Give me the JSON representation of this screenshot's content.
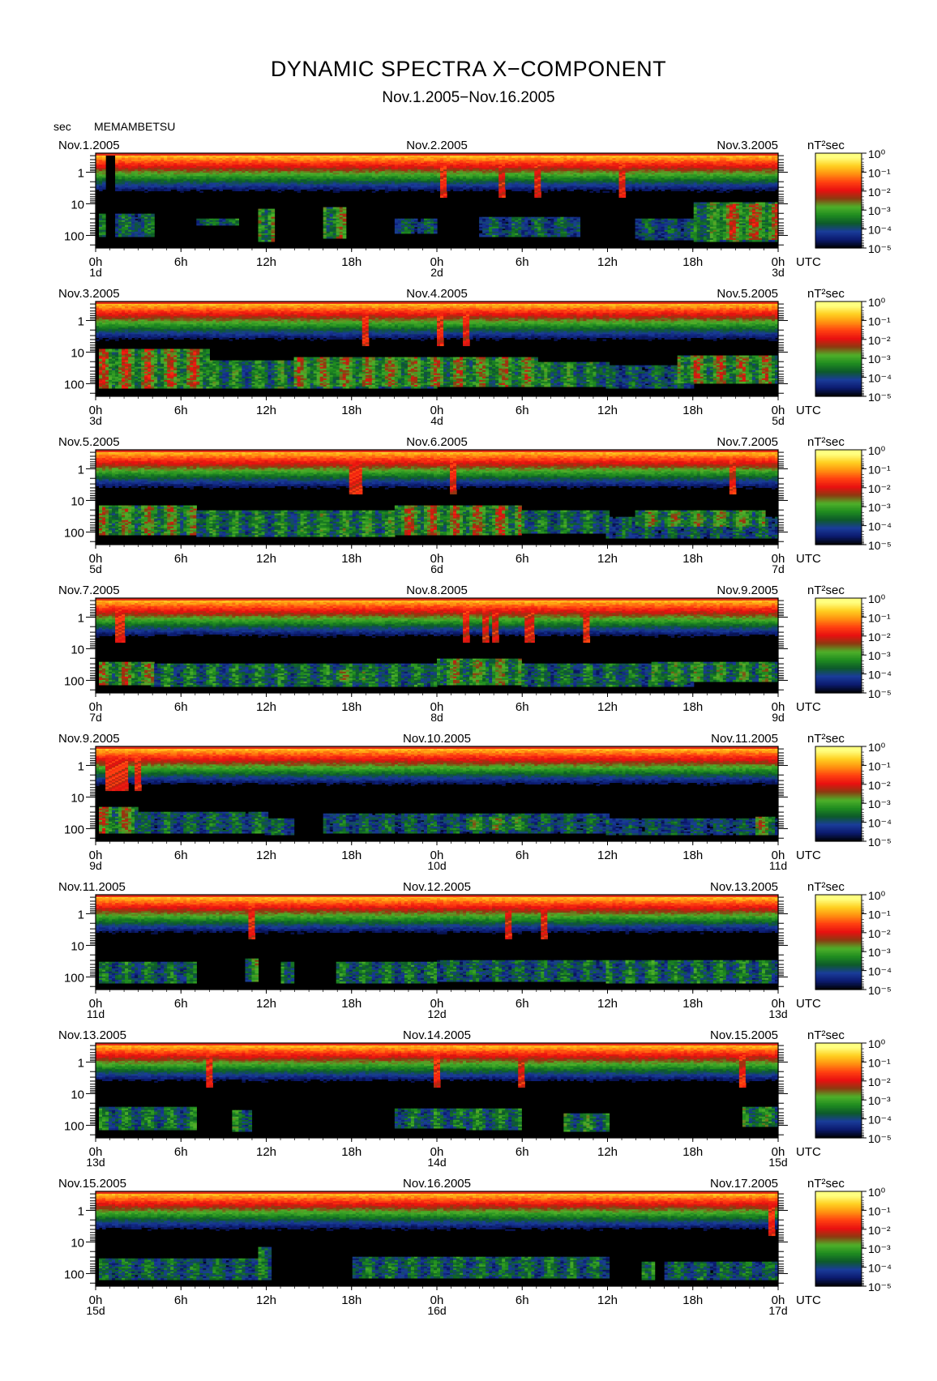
{
  "header": {
    "title": "DYNAMIC SPECTRA X−COMPONENT",
    "subtitle": "Nov.1.2005−Nov.16.2005",
    "unit": "sec",
    "station": "MEMAMBETSU"
  },
  "chart_data": {
    "type": "heatmap",
    "title": "DYNAMIC SPECTRA X−COMPONENT",
    "subtitle": "Nov.1.2005−Nov.16.2005",
    "ylabel": "sec",
    "y_scale": "log",
    "y_reversed": true,
    "y_range": [
      0.25,
      250
    ],
    "y_ticks": [
      "1",
      "10",
      "100"
    ],
    "x_tick_labels": [
      "0h",
      "6h",
      "12h",
      "18h",
      "0h",
      "6h",
      "12h",
      "18h",
      "0h"
    ],
    "time_unit": "UTC",
    "colorbar": {
      "unit": "nT²sec",
      "ticks": [
        "10⁰",
        "10⁻¹",
        "10⁻²",
        "10⁻³",
        "10⁻⁴",
        "10⁻⁵"
      ],
      "exponents": [
        0,
        -1,
        -2,
        -3,
        -4,
        -5
      ],
      "colors": [
        "#000000",
        "#0b1a6e",
        "#1a3c9a",
        "#0d5a2a",
        "#1f8c1f",
        "#4fb02a",
        "#8c3a10",
        "#e81010",
        "#ff4010",
        "#ff9010",
        "#ffd020",
        "#ffff80"
      ]
    },
    "panels": [
      {
        "start_label": "Nov.1.2005",
        "mid_label": "Nov.2.2005",
        "end_label": "Nov.3.2005",
        "day_labels": [
          "1d",
          "2d",
          "3d"
        ],
        "spikes_hours": [
          1.0,
          24.5,
          28.5,
          31.0,
          37.0
        ],
        "quiet_spans_hours": [
          [
            0.6,
            1.4
          ]
        ],
        "bursts": [
          {
            "start_h": 0.2,
            "end_h": 4,
            "period_min": 20,
            "period_max": 110,
            "log_power": -3.8
          },
          {
            "start_h": 7,
            "end_h": 10,
            "period_min": 28,
            "period_max": 50,
            "log_power": -3.7
          },
          {
            "start_h": 11.5,
            "end_h": 12.5,
            "period_min": 15,
            "period_max": 150,
            "log_power": -2.6
          },
          {
            "start_h": 16,
            "end_h": 17.5,
            "period_min": 12,
            "period_max": 120,
            "log_power": -2.8
          },
          {
            "start_h": 21,
            "end_h": 24,
            "period_min": 30,
            "period_max": 90,
            "log_power": -4.0
          },
          {
            "start_h": 27,
            "end_h": 34,
            "period_min": 25,
            "period_max": 110,
            "log_power": -3.9
          },
          {
            "start_h": 38,
            "end_h": 44,
            "period_min": 30,
            "period_max": 130,
            "log_power": -4.0
          },
          {
            "start_h": 42,
            "end_h": 48,
            "period_min": 9,
            "period_max": 150,
            "log_power": -3.3
          },
          {
            "start_h": 44,
            "end_h": 48,
            "period_min": 10,
            "period_max": 140,
            "log_power": -2.4
          }
        ]
      },
      {
        "start_label": "Nov.3.2005",
        "mid_label": "Nov.4.2005",
        "end_label": "Nov.5.2005",
        "day_labels": [
          "3d",
          "4d",
          "5d"
        ],
        "spikes_hours": [
          24.3,
          19.0,
          26.0
        ],
        "quiet_spans_hours": [],
        "bursts": [
          {
            "start_h": 0.2,
            "end_h": 8,
            "period_min": 8,
            "period_max": 140,
            "log_power": -2.4
          },
          {
            "start_h": 8,
            "end_h": 24,
            "period_min": 18,
            "period_max": 140,
            "log_power": -3.4
          },
          {
            "start_h": 14,
            "end_h": 31,
            "period_min": 14,
            "period_max": 120,
            "log_power": -2.7
          },
          {
            "start_h": 31,
            "end_h": 36,
            "period_min": 20,
            "period_max": 120,
            "log_power": -3.4
          },
          {
            "start_h": 36,
            "end_h": 42,
            "period_min": 25,
            "period_max": 140,
            "log_power": -3.9
          },
          {
            "start_h": 41,
            "end_h": 48,
            "period_min": 12,
            "period_max": 100,
            "log_power": -2.6
          }
        ]
      },
      {
        "start_label": "Nov.5.2005",
        "mid_label": "Nov.6.2005",
        "end_label": "Nov.7.2005",
        "day_labels": [
          "5d",
          "6d",
          "7d"
        ],
        "spikes_hours": [
          18.0,
          18.5,
          25.2,
          44.8
        ],
        "quiet_spans_hours": [],
        "bursts": [
          {
            "start_h": 0.2,
            "end_h": 7,
            "period_min": 15,
            "period_max": 120,
            "log_power": -2.8
          },
          {
            "start_h": 7,
            "end_h": 15,
            "period_min": 20,
            "period_max": 140,
            "log_power": -3.5
          },
          {
            "start_h": 15,
            "end_h": 21,
            "period_min": 20,
            "period_max": 130,
            "log_power": -3.3
          },
          {
            "start_h": 21,
            "end_h": 30,
            "period_min": 15,
            "period_max": 120,
            "log_power": -2.5
          },
          {
            "start_h": 30,
            "end_h": 36,
            "period_min": 20,
            "period_max": 110,
            "log_power": -3.6
          },
          {
            "start_h": 38,
            "end_h": 47,
            "period_min": 20,
            "period_max": 70,
            "log_power": -2.9
          },
          {
            "start_h": 36,
            "end_h": 48,
            "period_min": 35,
            "period_max": 150,
            "log_power": -3.9
          }
        ]
      },
      {
        "start_label": "Nov.7.2005",
        "mid_label": "Nov.8.2005",
        "end_label": "Nov.9.2005",
        "day_labels": [
          "7d",
          "8d",
          "9d"
        ],
        "spikes_hours": [
          1.6,
          1.9,
          26.0,
          27.5,
          28.2,
          30.5,
          34.5
        ],
        "quiet_spans_hours": [],
        "bursts": [
          {
            "start_h": 0.2,
            "end_h": 4,
            "period_min": 25,
            "period_max": 130,
            "log_power": -2.7
          },
          {
            "start_h": 4,
            "end_h": 24,
            "period_min": 30,
            "period_max": 150,
            "log_power": -3.6
          },
          {
            "start_h": 17,
            "end_h": 19,
            "period_min": 45,
            "period_max": 110,
            "log_power": -2.8
          },
          {
            "start_h": 24,
            "end_h": 30,
            "period_min": 20,
            "period_max": 140,
            "log_power": -2.9
          },
          {
            "start_h": 30,
            "end_h": 42,
            "period_min": 30,
            "period_max": 150,
            "log_power": -3.7
          },
          {
            "start_h": 39,
            "end_h": 48,
            "period_min": 25,
            "period_max": 110,
            "log_power": -3.2
          }
        ]
      },
      {
        "start_label": "Nov.9.2005",
        "mid_label": "Nov.10.2005",
        "end_label": "Nov.11.2005",
        "day_labels": [
          "9d",
          "10d",
          "11d"
        ],
        "spikes_hours": [
          1.0,
          1.5,
          2.0,
          3.0
        ],
        "quiet_spans_hours": [],
        "bursts": [
          {
            "start_h": 0.2,
            "end_h": 3,
            "period_min": 20,
            "period_max": 140,
            "log_power": -2.6
          },
          {
            "start_h": 3,
            "end_h": 12,
            "period_min": 30,
            "period_max": 140,
            "log_power": -3.8
          },
          {
            "start_h": 12,
            "end_h": 14,
            "period_min": 45,
            "period_max": 150,
            "log_power": -3.8
          },
          {
            "start_h": 16,
            "end_h": 36,
            "period_min": 35,
            "period_max": 140,
            "log_power": -3.9
          },
          {
            "start_h": 26,
            "end_h": 30,
            "period_min": 40,
            "period_max": 110,
            "log_power": -3.1
          },
          {
            "start_h": 36,
            "end_h": 48,
            "period_min": 50,
            "period_max": 150,
            "log_power": -4.1
          },
          {
            "start_h": 46.5,
            "end_h": 47.8,
            "period_min": 40,
            "period_max": 150,
            "log_power": -2.8
          }
        ]
      },
      {
        "start_label": "Nov.11.2005",
        "mid_label": "Nov.12.2005",
        "end_label": "Nov.13.2005",
        "day_labels": [
          "11d",
          "12d",
          "13d"
        ],
        "spikes_hours": [
          11.0,
          29.0,
          31.5
        ],
        "quiet_spans_hours": [],
        "bursts": [
          {
            "start_h": 0.2,
            "end_h": 7,
            "period_min": 35,
            "period_max": 150,
            "log_power": -3.7
          },
          {
            "start_h": 10.5,
            "end_h": 11.5,
            "period_min": 25,
            "period_max": 130,
            "log_power": -3.0
          },
          {
            "start_h": 13,
            "end_h": 14,
            "period_min": 35,
            "period_max": 150,
            "log_power": -3.2
          },
          {
            "start_h": 17,
            "end_h": 24,
            "period_min": 35,
            "period_max": 150,
            "log_power": -3.6
          },
          {
            "start_h": 24,
            "end_h": 36,
            "period_min": 30,
            "period_max": 140,
            "log_power": -3.8
          },
          {
            "start_h": 36,
            "end_h": 48,
            "period_min": 30,
            "period_max": 150,
            "log_power": -3.6
          }
        ]
      },
      {
        "start_label": "Nov.13.2005",
        "mid_label": "Nov.14.2005",
        "end_label": "Nov.15.2005",
        "day_labels": [
          "13d",
          "14d",
          "15d"
        ],
        "spikes_hours": [
          8.0,
          24.0,
          30.0,
          45.5
        ],
        "quiet_spans_hours": [],
        "bursts": [
          {
            "start_h": 0.2,
            "end_h": 7,
            "period_min": 25,
            "period_max": 130,
            "log_power": -3.6
          },
          {
            "start_h": 9.5,
            "end_h": 11,
            "period_min": 35,
            "period_max": 150,
            "log_power": -3.4
          },
          {
            "start_h": 21,
            "end_h": 26,
            "period_min": 30,
            "period_max": 120,
            "log_power": -3.7
          },
          {
            "start_h": 26,
            "end_h": 30,
            "period_min": 30,
            "period_max": 130,
            "log_power": -3.5
          },
          {
            "start_h": 33,
            "end_h": 36,
            "period_min": 40,
            "period_max": 150,
            "log_power": -3.4
          },
          {
            "start_h": 45.5,
            "end_h": 48,
            "period_min": 25,
            "period_max": 110,
            "log_power": -3.3
          }
        ]
      },
      {
        "start_label": "Nov.15.2005",
        "mid_label": "Nov.16.2005",
        "end_label": "Nov.17.2005",
        "day_labels": [
          "15d",
          "16d",
          "17d"
        ],
        "spikes_hours": [
          47.5
        ],
        "quiet_spans_hours": [],
        "bursts": [
          {
            "start_h": 0.2,
            "end_h": 12,
            "period_min": 35,
            "period_max": 150,
            "log_power": -3.8
          },
          {
            "start_h": 11.5,
            "end_h": 12.3,
            "period_min": 15,
            "period_max": 150,
            "log_power": -3.4
          },
          {
            "start_h": 18,
            "end_h": 36,
            "period_min": 30,
            "period_max": 140,
            "log_power": -3.7
          },
          {
            "start_h": 38.5,
            "end_h": 39.2,
            "period_min": 40,
            "period_max": 150,
            "log_power": -2.8
          },
          {
            "start_h": 40,
            "end_h": 48,
            "period_min": 40,
            "period_max": 150,
            "log_power": -3.8
          }
        ]
      }
    ]
  }
}
